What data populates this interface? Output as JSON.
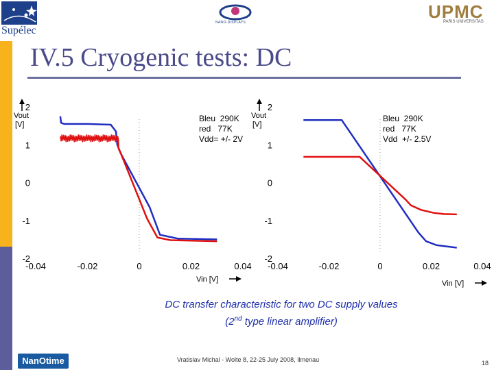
{
  "title": "IV.5 Cryogenic tests: DC",
  "logos": {
    "left": "Supélec",
    "center": "NANO-DISPLAYS",
    "right": "UPMC",
    "right_sub": "PARIS UNIVERSITAS",
    "bottom": "NanOtime"
  },
  "caption": {
    "line1": "DC transfer characteristic for two DC supply values",
    "line2_pre": "(2",
    "line2_sup": "nd",
    "line2_post": " type linear amplifier)"
  },
  "footer": "Vratislav Michal - Wolte 8,  22-25 July 2008, Ilmenau",
  "page_number": "18",
  "colors": {
    "series_blue": "#1f2ec0",
    "series_red": "#e01010",
    "accent": "#f7b21c"
  },
  "chart_data": [
    {
      "type": "line",
      "xlim": [
        -0.04,
        0.04
      ],
      "ylim": [
        -2,
        2
      ],
      "xticks": [
        "-0.04",
        "-0.02",
        "0",
        "0.02",
        "0.04"
      ],
      "yticks": [
        "2",
        "1",
        "0",
        "-1",
        "-2"
      ],
      "ylabel": "Vout [V]",
      "xlabel": "Vin [V]",
      "legend": [
        "Bleu  290K",
        "red   77K",
        "Vdd= +/- 2V"
      ],
      "series": [
        {
          "name": "290K",
          "color": "blue",
          "x": [
            -0.0305,
            -0.0302,
            -0.029,
            -0.02,
            -0.011,
            -0.009,
            -0.0085,
            -0.007,
            0.004,
            0.008,
            0.015,
            0.03
          ],
          "y": [
            1.75,
            1.58,
            1.55,
            1.55,
            1.53,
            1.35,
            1.0,
            0.75,
            -0.65,
            -1.38,
            -1.48,
            -1.5
          ]
        },
        {
          "name": "77K",
          "color": "red",
          "noisy_range": [
            -0.0305,
            -0.0082
          ],
          "x": [
            -0.0305,
            -0.0082,
            -0.008,
            -0.007,
            0.003,
            0.007,
            0.012,
            0.03
          ],
          "y": [
            1.17,
            1.17,
            0.9,
            0.75,
            -0.95,
            -1.45,
            -1.52,
            -1.55
          ]
        }
      ]
    },
    {
      "type": "line",
      "xlim": [
        -0.04,
        0.04
      ],
      "ylim": [
        -2,
        2
      ],
      "xticks": [
        "-0.04",
        "-0.02",
        "0",
        "0.02",
        "0.04"
      ],
      "yticks": [
        "2",
        "1",
        "0",
        "-1",
        "-2"
      ],
      "ylabel": "Vout [V]",
      "xlabel": "Vin [V]",
      "legend": [
        "Bleu  290K",
        "red   77K",
        "Vdd  +/- 2.5V"
      ],
      "series": [
        {
          "name": "290K",
          "color": "blue",
          "x": [
            -0.03,
            -0.015,
            0.015,
            0.018,
            0.022,
            0.03
          ],
          "y": [
            1.65,
            1.65,
            -1.32,
            -1.55,
            -1.65,
            -1.72
          ]
        },
        {
          "name": "77K",
          "color": "red",
          "x": [
            -0.03,
            -0.008,
            0.01,
            0.012,
            0.016,
            0.021,
            0.025,
            0.03
          ],
          "y": [
            0.68,
            0.68,
            -0.45,
            -0.6,
            -0.72,
            -0.8,
            -0.83,
            -0.84
          ]
        }
      ]
    }
  ]
}
